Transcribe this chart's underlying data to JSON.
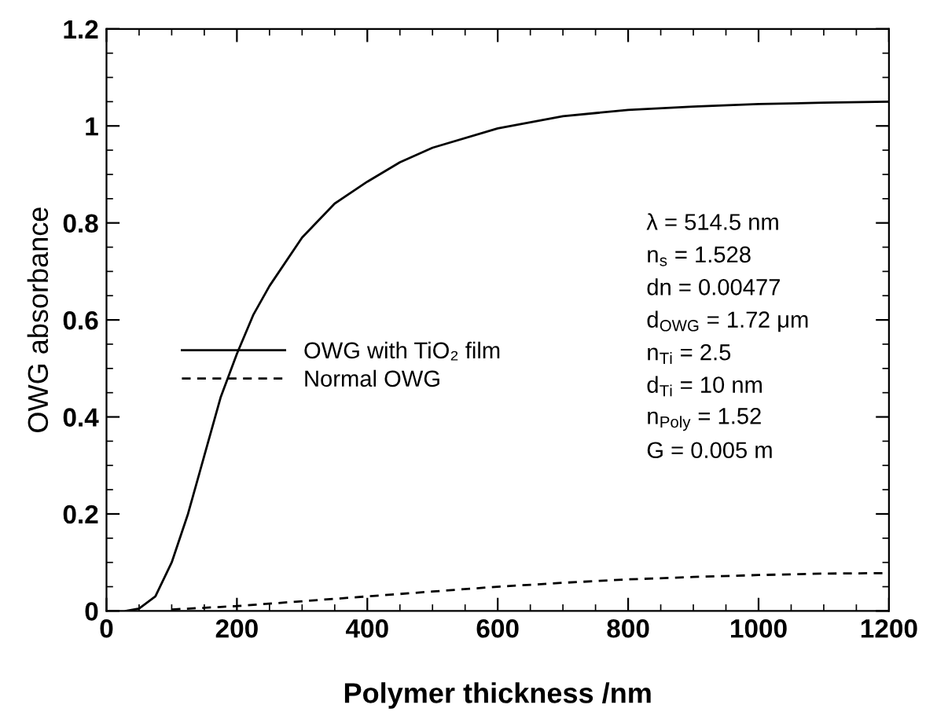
{
  "chart_data": {
    "type": "line",
    "xlabel": "Polymer thickness /nm",
    "ylabel": "OWG absorbance",
    "xlim": [
      0,
      1200
    ],
    "ylim": [
      0,
      1.2
    ],
    "xticks": [
      0,
      200,
      400,
      600,
      800,
      1000,
      1200
    ],
    "yticks": [
      0,
      0.2,
      0.4,
      0.6,
      0.8,
      1,
      1.2
    ],
    "grid": false,
    "legend": "left",
    "marker": "none",
    "series": [
      {
        "name": "OWG with TiO₂ film",
        "color": "#000000",
        "line_style": "solid",
        "x": [
          30,
          50,
          75,
          100,
          125,
          150,
          175,
          200,
          225,
          250,
          300,
          350,
          400,
          450,
          500,
          600,
          700,
          800,
          900,
          1000,
          1100,
          1200
        ],
        "values": [
          0,
          0.005,
          0.03,
          0.1,
          0.2,
          0.32,
          0.44,
          0.53,
          0.61,
          0.67,
          0.77,
          0.84,
          0.885,
          0.925,
          0.955,
          0.995,
          1.02,
          1.033,
          1.04,
          1.045,
          1.048,
          1.05
        ]
      },
      {
        "name": "Normal OWG",
        "color": "#000000",
        "line_style": "dashed",
        "x": [
          100,
          200,
          300,
          400,
          500,
          600,
          700,
          800,
          900,
          1000,
          1100,
          1200
        ],
        "values": [
          0.003,
          0.01,
          0.02,
          0.03,
          0.04,
          0.05,
          0.058,
          0.065,
          0.07,
          0.074,
          0.077,
          0.078
        ]
      }
    ],
    "annotations": [
      "λ = 514.5 nm",
      "n$_{s}$ = 1.528",
      "dn = 0.00477",
      "d$_{OWG}$ = 1.72 μm",
      "n$_{Ti}$ = 2.5",
      "d$_{Ti}$ = 10 nm",
      "n$_{Poly}$ = 1.52",
      "G = 0.005 m"
    ]
  }
}
